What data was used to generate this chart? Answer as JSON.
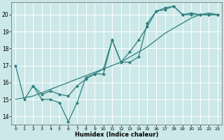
{
  "title": "",
  "xlabel": "Humidex (Indice chaleur)",
  "bg_color": "#cce8e8",
  "line_color": "#2d7f7f",
  "grid_color": "#ffffff",
  "xlim": [
    -0.5,
    23.5
  ],
  "ylim": [
    13.5,
    20.75
  ],
  "yticks": [
    14,
    15,
    16,
    17,
    18,
    19,
    20
  ],
  "xticks": [
    0,
    1,
    2,
    3,
    4,
    5,
    6,
    7,
    8,
    9,
    10,
    11,
    12,
    13,
    14,
    15,
    16,
    17,
    18,
    19,
    20,
    21,
    22,
    23
  ],
  "series": [
    {
      "x": [
        0,
        2,
        3,
        4,
        5,
        6,
        7,
        8,
        9,
        10,
        11,
        12,
        13,
        14,
        15,
        16,
        17,
        18,
        19,
        20,
        21,
        22,
        23
      ],
      "y": [
        15.0,
        15.2,
        15.4,
        15.6,
        15.8,
        16.0,
        16.2,
        16.4,
        16.6,
        16.8,
        17.0,
        17.2,
        17.5,
        17.8,
        18.1,
        18.5,
        18.9,
        19.2,
        19.5,
        19.8,
        20.0,
        20.1,
        20.0
      ],
      "marker": false
    },
    {
      "x": [
        0,
        1,
        2,
        3,
        4,
        5,
        6,
        7,
        8,
        9,
        10,
        11,
        12,
        13,
        14,
        15,
        16,
        17,
        18,
        19,
        20,
        21,
        22,
        23
      ],
      "y": [
        17.0,
        15.0,
        15.8,
        15.0,
        15.0,
        14.8,
        13.7,
        14.8,
        16.3,
        16.5,
        16.5,
        18.5,
        17.2,
        17.2,
        17.5,
        19.5,
        20.2,
        20.3,
        20.5,
        20.0,
        20.0,
        20.0,
        20.0,
        20.0
      ],
      "marker": true
    },
    {
      "x": [
        2,
        3,
        4,
        5,
        6,
        7,
        8,
        9,
        10,
        11,
        12,
        13,
        14,
        15,
        16,
        17,
        18,
        19,
        20,
        21,
        22,
        23
      ],
      "y": [
        15.8,
        15.3,
        15.5,
        15.3,
        15.2,
        15.8,
        16.2,
        16.5,
        16.8,
        18.5,
        17.2,
        17.8,
        18.5,
        19.3,
        20.2,
        20.4,
        20.5,
        20.0,
        20.1,
        20.0,
        20.0,
        20.0
      ],
      "marker": true
    }
  ]
}
